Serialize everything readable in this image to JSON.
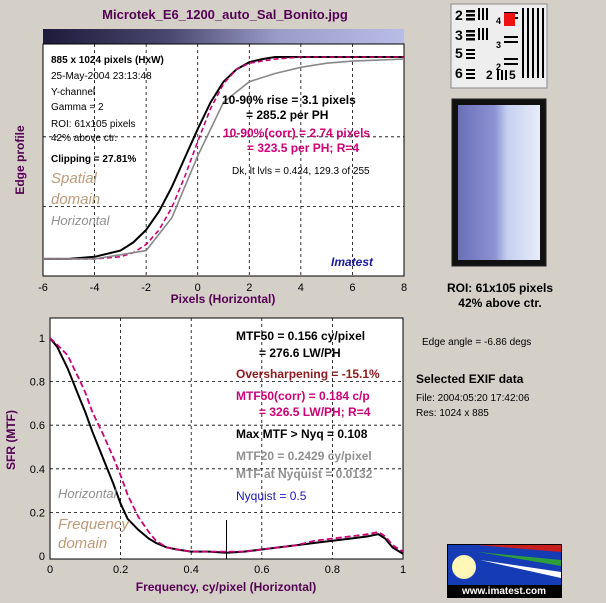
{
  "title": "Microtek_E6_1200_auto_Sal_Bonito.jpg",
  "edge_info": {
    "size": "885 x 1024 pixels (HxW)",
    "date": "25-May-2004 23:13:48",
    "channel": "Y-channel",
    "gamma": "Gamma = 2",
    "roi": "ROI: 61x105 pixels",
    "above": "42% above ctr.",
    "clipping": "Clipping = 27.81%",
    "rise1": "10-90% rise = 3.1 pixels",
    "rise2": "= 285.2 per PH",
    "corr1": "10-90%(corr) = 2.74 pixels",
    "corr2": "= 323.5 per PH;  R=4",
    "dk": "Dk, lt lvls = 0.424, 129.3 of 255",
    "domain1": "Spatial",
    "domain2": "domain",
    "orient": "Horizontal",
    "brand": "Imatest"
  },
  "mtf_info": {
    "mtf50a": "MTF50 = 0.156 cy/pixel",
    "mtf50b": "= 276.6 LW/PH",
    "oversharp": "Oversharpening = -15.1%",
    "corr1": "MTF50(corr) = 0.184 c/p",
    "corr2": "= 326.5 LW/PH;  R=4",
    "maxmtf": "Max MTF > Nyq = 0.108",
    "mtf20": "MTF20 = 0.2429 cy/pixel",
    "nyqmtf": "MTF at Nyquist = 0.0132",
    "nyq": "Nyquist = 0.5",
    "orient": "Horizontal",
    "domain1": "Frequency",
    "domain2": "domain"
  },
  "side": {
    "roi1": "ROI: 61x105 pixels",
    "roi2": "42% above ctr.",
    "edge_angle": "Edge angle = -6.86 degs",
    "exif_title": "Selected EXIF data",
    "file": "File:  2004:05:20 17:42:06",
    "res": "Res:    1024 x 885",
    "logo_url": "www.imatest.com"
  },
  "chart_data": [
    {
      "type": "line",
      "xlabel": "Pixels (Horizontal)",
      "ylabel": "Edge profile",
      "xlim": [
        -6,
        8
      ],
      "xticks": [
        "-6",
        "-4",
        "-2",
        "0",
        "2",
        "4",
        "6",
        "8"
      ],
      "grid": true,
      "series": [
        {
          "color": "#000000",
          "x": [
            -6,
            -5,
            -4,
            -3,
            -2.5,
            -2,
            -1.5,
            -1,
            -0.5,
            0,
            0.5,
            1,
            1.5,
            2,
            2.5,
            3,
            4,
            5,
            6,
            7,
            8
          ],
          "y": [
            0.02,
            0.02,
            0.03,
            0.06,
            0.1,
            0.16,
            0.25,
            0.37,
            0.51,
            0.65,
            0.78,
            0.88,
            0.94,
            0.975,
            0.99,
            1.0,
            1.0,
            1.0,
            1.0,
            1.0,
            1.0
          ]
        },
        {
          "color": "#cc0077",
          "x": [
            -6,
            -5,
            -4,
            -3,
            -2.5,
            -2,
            -1.5,
            -1,
            -0.5,
            0,
            0.5,
            1,
            1.5,
            2,
            2.5,
            3,
            4,
            5,
            6,
            7,
            8
          ],
          "y": [
            0.02,
            0.02,
            0.02,
            0.03,
            0.05,
            0.09,
            0.16,
            0.27,
            0.42,
            0.59,
            0.75,
            0.87,
            0.94,
            0.97,
            0.98,
            0.99,
            1.0,
            1.0,
            1.0,
            1.0,
            1.0
          ]
        },
        {
          "color": "#888888",
          "x": [
            -6,
            -4,
            -2,
            -1,
            0,
            1,
            2,
            3,
            4,
            5,
            6,
            8
          ],
          "y": [
            0.02,
            0.02,
            0.06,
            0.22,
            0.52,
            0.78,
            0.88,
            0.92,
            0.95,
            0.97,
            0.98,
            0.99
          ]
        }
      ]
    },
    {
      "type": "line",
      "xlabel": "Frequency,  cy/pixel (Horizontal)",
      "ylabel": "SFR (MTF)",
      "xlim": [
        0,
        1
      ],
      "ylim": [
        0,
        1
      ],
      "xticks": [
        "0",
        "0.2",
        "0.4",
        "0.6",
        "0.8",
        "1"
      ],
      "yticks": [
        "0",
        "0.2",
        "0.4",
        "0.6",
        "0.8",
        "1"
      ],
      "nyquist": 0.5,
      "grid": true,
      "series": [
        {
          "color": "#000000",
          "x": [
            0,
            0.02,
            0.05,
            0.08,
            0.1,
            0.12,
            0.15,
            0.18,
            0.2,
            0.22,
            0.25,
            0.28,
            0.3,
            0.33,
            0.36,
            0.4,
            0.45,
            0.5,
            0.55,
            0.6,
            0.65,
            0.7,
            0.75,
            0.8,
            0.85,
            0.9,
            0.93,
            0.95,
            0.97,
            1.0
          ],
          "y": [
            1.0,
            0.96,
            0.86,
            0.74,
            0.66,
            0.57,
            0.45,
            0.33,
            0.24,
            0.17,
            0.12,
            0.08,
            0.06,
            0.04,
            0.03,
            0.02,
            0.02,
            0.015,
            0.02,
            0.03,
            0.04,
            0.05,
            0.06,
            0.07,
            0.08,
            0.09,
            0.1,
            0.08,
            0.04,
            0.01
          ]
        },
        {
          "color": "#cc0077",
          "x": [
            0,
            0.02,
            0.05,
            0.08,
            0.1,
            0.12,
            0.15,
            0.18,
            0.2,
            0.22,
            0.25,
            0.28,
            0.3,
            0.33,
            0.36,
            0.4,
            0.45,
            0.5,
            0.55,
            0.6,
            0.65,
            0.7,
            0.75,
            0.8,
            0.85,
            0.9,
            0.93,
            0.95,
            0.97,
            1.0
          ],
          "y": [
            1.0,
            0.97,
            0.92,
            0.82,
            0.75,
            0.66,
            0.56,
            0.45,
            0.37,
            0.28,
            0.18,
            0.11,
            0.07,
            0.04,
            0.03,
            0.02,
            0.02,
            0.02,
            0.02,
            0.03,
            0.04,
            0.05,
            0.07,
            0.08,
            0.09,
            0.1,
            0.11,
            0.09,
            0.05,
            0.02
          ]
        }
      ]
    }
  ]
}
